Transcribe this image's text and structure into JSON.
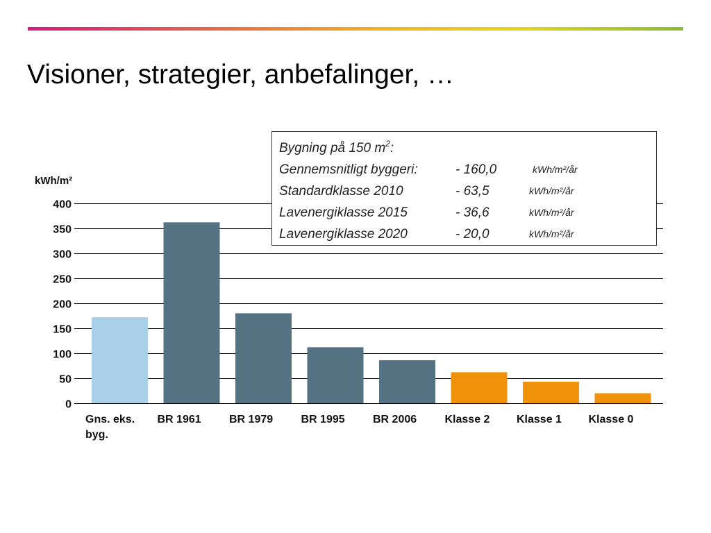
{
  "slide": {
    "title": "Visioner, strategier, anbefalinger, …"
  },
  "info_box": {
    "heading": "Bygning på 150 m",
    "heading_sup": "2",
    "heading_suffix": ":",
    "rows": [
      {
        "label": "Gennemsnitligt byggeri:",
        "value": "- 160,0",
        "unit": "kWh/m²/år"
      },
      {
        "label": "Standardklasse 2010",
        "value": "-  63,5",
        "unit": "kWh/m²/år"
      },
      {
        "label": "Lavenergiklasse 2015",
        "value": "-  36,6",
        "unit": "kWh/m²/år"
      },
      {
        "label": "Lavenergiklasse 2020",
        "value": "-  20,0",
        "unit": "kWh/m²/år"
      }
    ]
  },
  "chart_data": {
    "type": "bar",
    "ylabel": "kWh/m²",
    "xlabel": "",
    "title": "",
    "ylim": [
      0,
      400
    ],
    "yticks": [
      0,
      50,
      100,
      150,
      200,
      250,
      300,
      350,
      400
    ],
    "grid": true,
    "categories": [
      "Gns. eks. byg.",
      "BR 1961",
      "BR 1979",
      "BR 1995",
      "BR 2006",
      "Klasse 2",
      "Klasse 1",
      "Klasse 0"
    ],
    "category_lines": [
      [
        "Gns. eks.",
        "byg."
      ],
      [
        "BR 1961"
      ],
      [
        "BR 1979"
      ],
      [
        "BR 1995"
      ],
      [
        "BR 2006"
      ],
      [
        "Klasse 2"
      ],
      [
        "Klasse 1"
      ],
      [
        "Klasse 0"
      ]
    ],
    "values": [
      172,
      362,
      180,
      112,
      86,
      62,
      43,
      20
    ],
    "colors": [
      "#a9cfe9",
      "#557282",
      "#557282",
      "#557282",
      "#557282",
      "#f0930a",
      "#f0930a",
      "#f0930a"
    ],
    "grid_color": "#000000"
  }
}
